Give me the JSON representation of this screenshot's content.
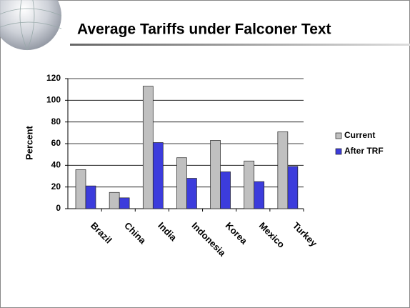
{
  "chart_data": {
    "type": "bar",
    "title": "Average Tariffs under Falconer Text",
    "y_label": "Percent",
    "categories": [
      "Brazil",
      "China",
      "India",
      "Indonesia",
      "Korea",
      "Mexico",
      "Turkey"
    ],
    "series": [
      {
        "name": "Current",
        "color": "#c0c0c0",
        "values": [
          36,
          15,
          113,
          47,
          63,
          44,
          71
        ]
      },
      {
        "name": "After TRF",
        "color": "#3c3cdc",
        "values": [
          21,
          10,
          61,
          28,
          34,
          25,
          39
        ]
      }
    ],
    "ylim": [
      0,
      120
    ],
    "yticks": [
      0,
      20,
      40,
      60,
      80,
      100,
      120
    ],
    "grid": true,
    "legend": "right"
  }
}
